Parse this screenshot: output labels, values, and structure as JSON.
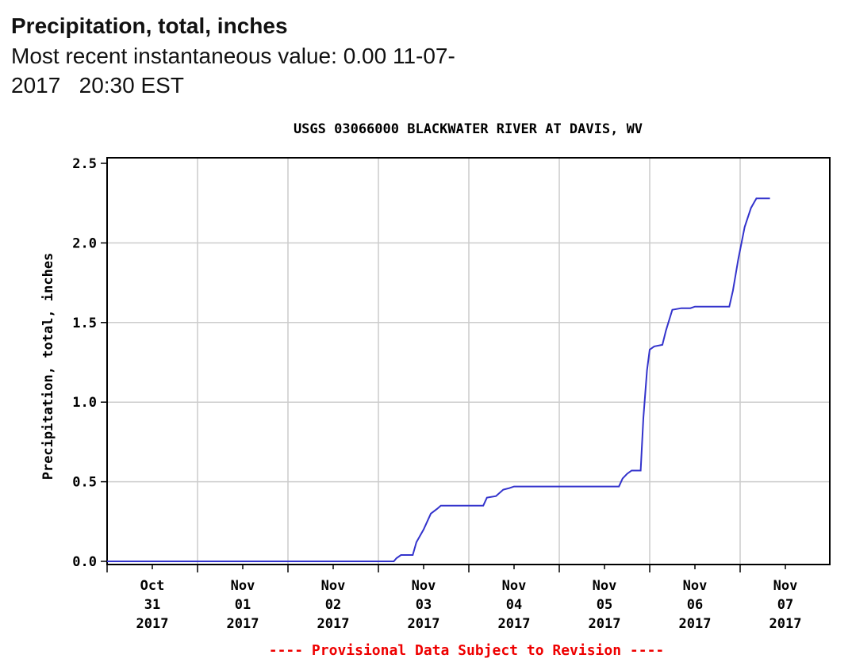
{
  "header": {
    "title": "Precipitation, total, inches",
    "recent_label": "Most recent instantaneous value: 0.00 11-07-",
    "recent_line2": "2017   20:30 EST"
  },
  "chart_data": {
    "type": "line",
    "title": "USGS 03066000 BLACKWATER RIVER AT DAVIS, WV",
    "ylabel": "Precipitation, total, inches",
    "xlabel": "",
    "ylim": [
      0,
      2.5
    ],
    "yticks": [
      "0.0",
      "0.5",
      "1.0",
      "1.5",
      "2.0",
      "2.5"
    ],
    "xticks": [
      {
        "lines": [
          "Oct",
          "31",
          "2017"
        ]
      },
      {
        "lines": [
          "Nov",
          "01",
          "2017"
        ]
      },
      {
        "lines": [
          "Nov",
          "02",
          "2017"
        ]
      },
      {
        "lines": [
          "Nov",
          "03",
          "2017"
        ]
      },
      {
        "lines": [
          "Nov",
          "04",
          "2017"
        ]
      },
      {
        "lines": [
          "Nov",
          "05",
          "2017"
        ]
      },
      {
        "lines": [
          "Nov",
          "06",
          "2017"
        ]
      },
      {
        "lines": [
          "Nov",
          "07",
          "2017"
        ]
      }
    ],
    "grid": true,
    "line_color": "#3333cc",
    "footer": "---- Provisional Data Subject to Revision ----",
    "footer_color": "#ee0000",
    "series": [
      {
        "points": [
          [
            0.0,
            0.0
          ],
          [
            3.17,
            0.0
          ],
          [
            3.2,
            0.02
          ],
          [
            3.25,
            0.04
          ],
          [
            3.38,
            0.04
          ],
          [
            3.42,
            0.12
          ],
          [
            3.5,
            0.2
          ],
          [
            3.58,
            0.3
          ],
          [
            3.65,
            0.33
          ],
          [
            3.69,
            0.35
          ],
          [
            4.16,
            0.35
          ],
          [
            4.2,
            0.4
          ],
          [
            4.3,
            0.41
          ],
          [
            4.38,
            0.45
          ],
          [
            4.45,
            0.46
          ],
          [
            4.5,
            0.47
          ],
          [
            5.66,
            0.47
          ],
          [
            5.7,
            0.52
          ],
          [
            5.75,
            0.55
          ],
          [
            5.8,
            0.57
          ],
          [
            5.9,
            0.57
          ],
          [
            5.93,
            0.9
          ],
          [
            5.97,
            1.2
          ],
          [
            6.0,
            1.33
          ],
          [
            6.05,
            1.35
          ],
          [
            6.14,
            1.36
          ],
          [
            6.18,
            1.45
          ],
          [
            6.25,
            1.58
          ],
          [
            6.35,
            1.59
          ],
          [
            6.45,
            1.59
          ],
          [
            6.5,
            1.6
          ],
          [
            6.88,
            1.6
          ],
          [
            6.92,
            1.7
          ],
          [
            6.98,
            1.9
          ],
          [
            7.05,
            2.1
          ],
          [
            7.12,
            2.22
          ],
          [
            7.18,
            2.28
          ],
          [
            7.33,
            2.28
          ]
        ]
      }
    ]
  }
}
